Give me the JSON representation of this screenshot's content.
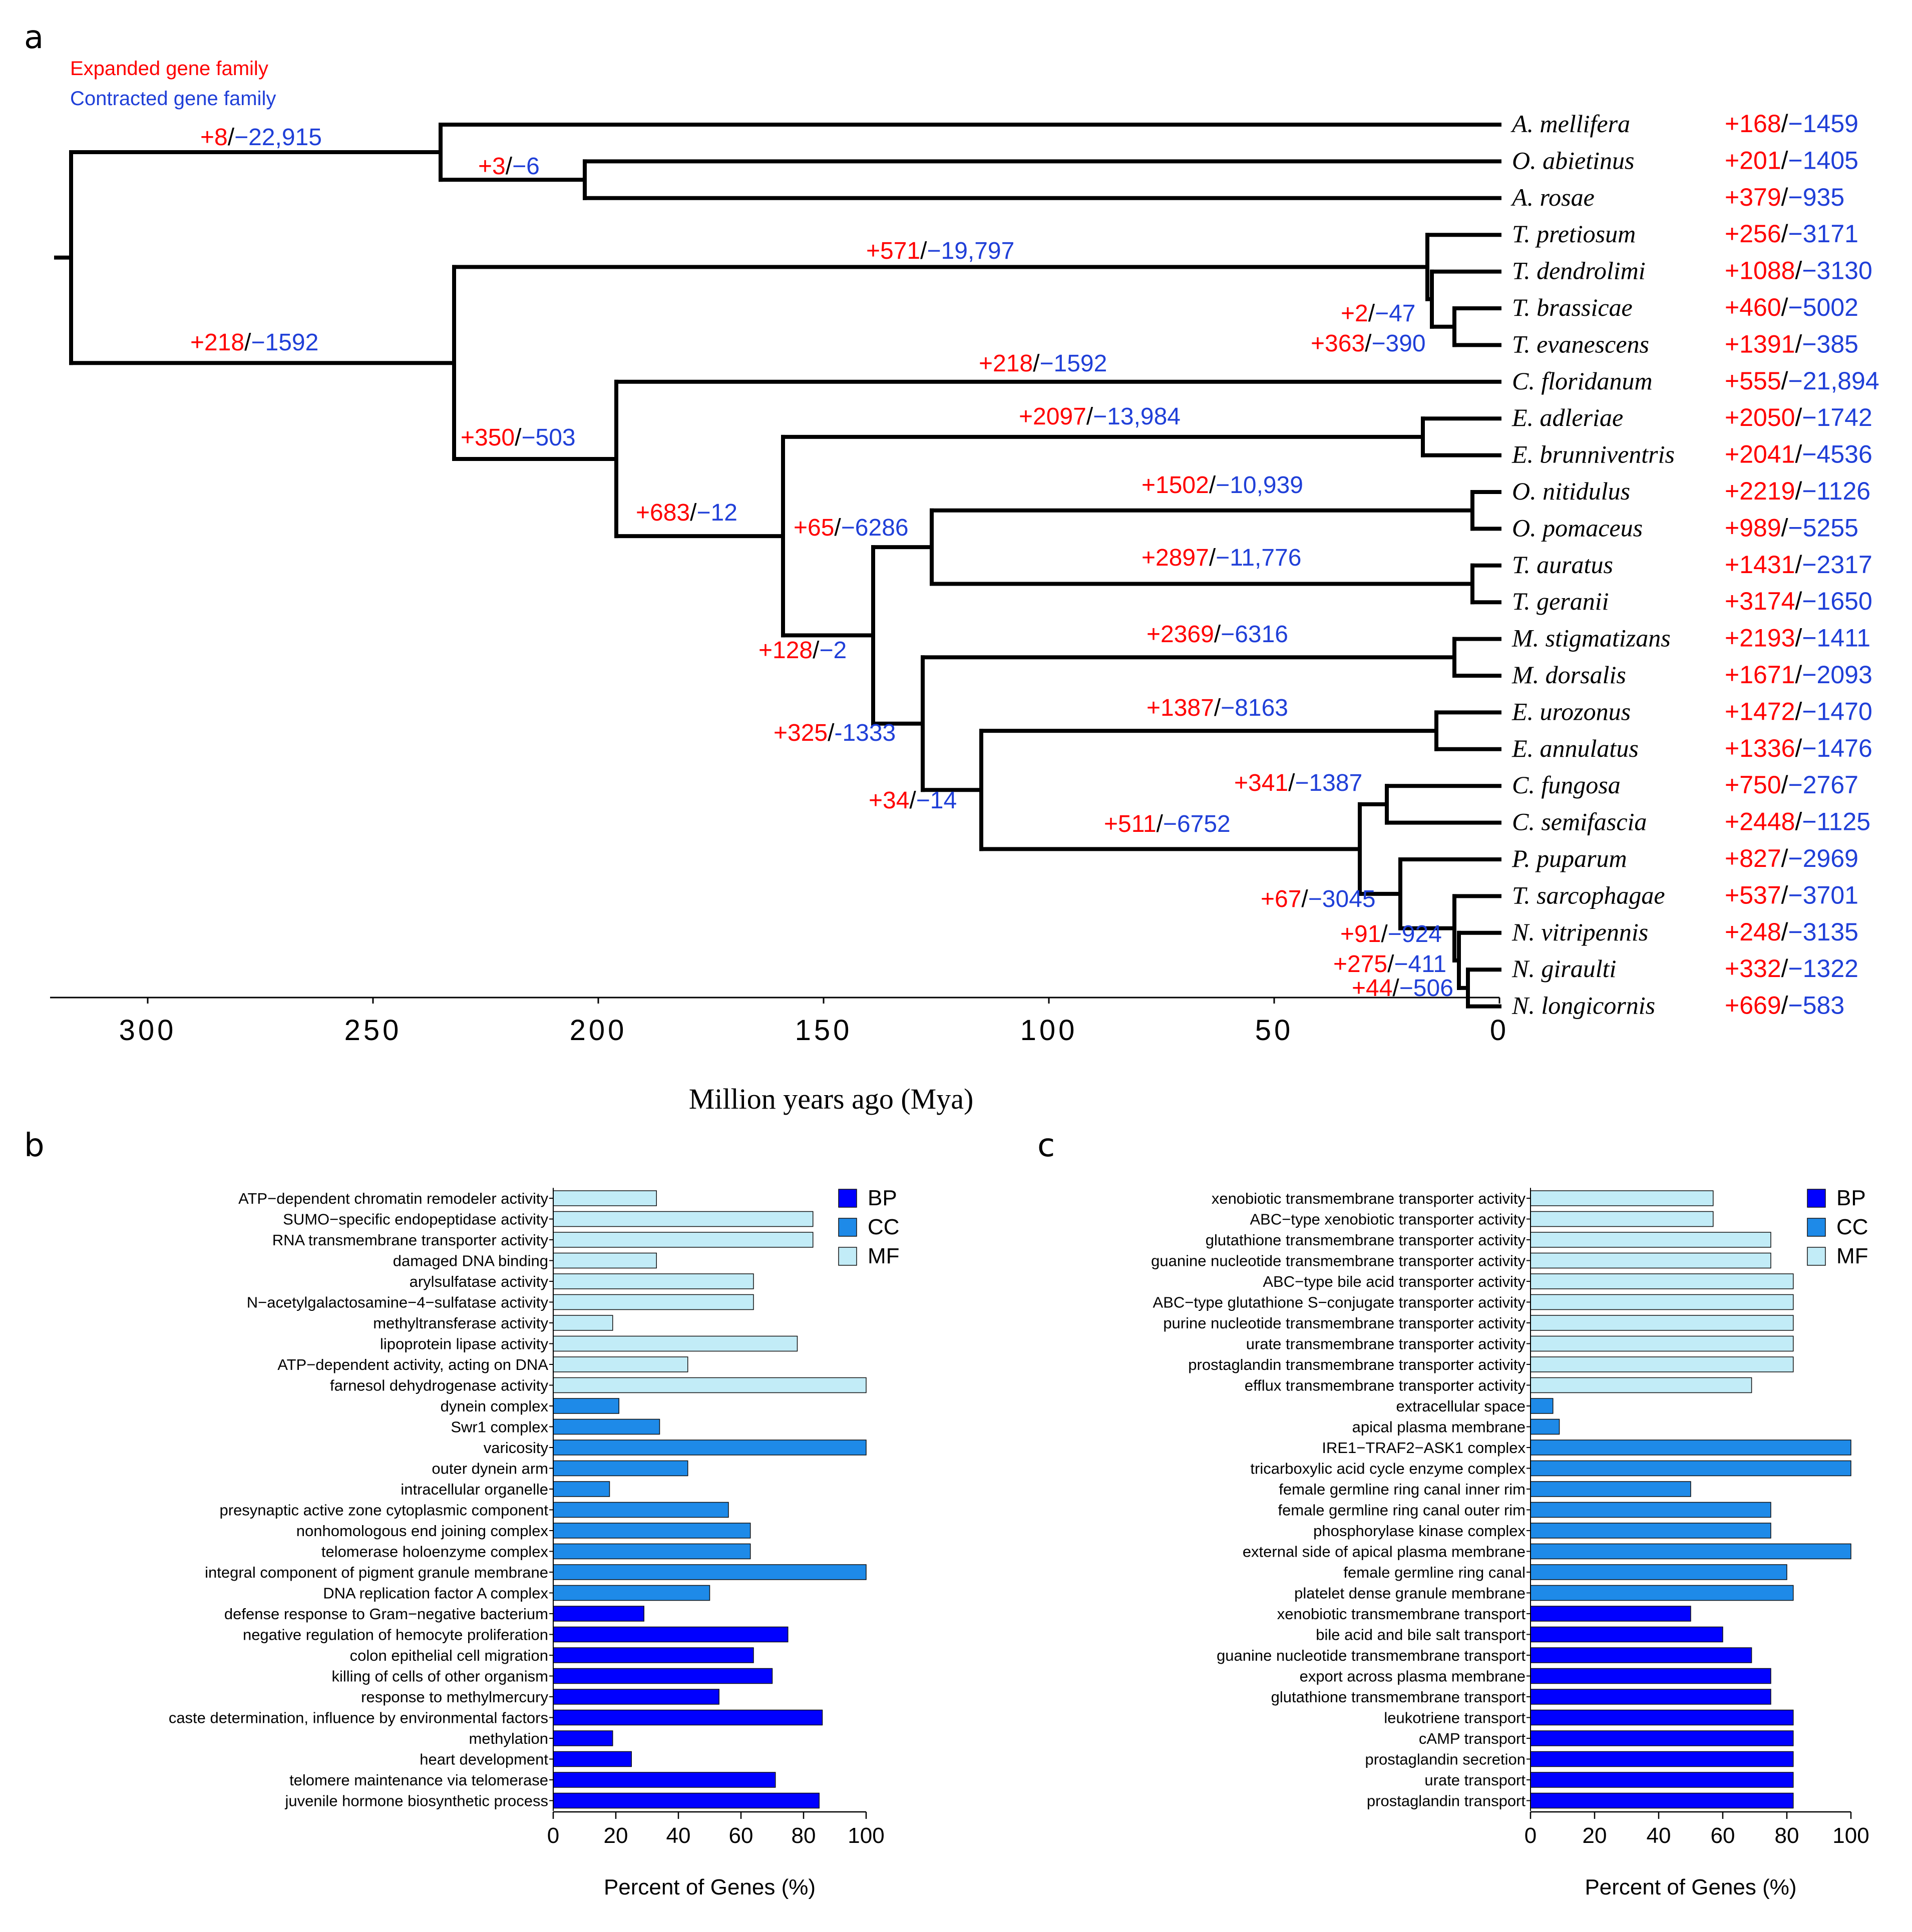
{
  "panels": {
    "a": "a",
    "b": "b",
    "c": "c"
  },
  "legend": {
    "expanded": "Expanded gene family",
    "contracted": "Contracted gene family"
  },
  "colors": {
    "expanded": "#ff0000",
    "contracted": "#1f3fd8",
    "BP": "#0000ff",
    "CC": "#1e8ae8",
    "MF": "#c2ecf7"
  },
  "chart_data": [
    {
      "type": "tree",
      "xlabel": "Million years ago (Mya)",
      "x_ticks": [
        300,
        250,
        200,
        150,
        100,
        50,
        0
      ],
      "xlim": [
        320,
        0
      ],
      "taxa": [
        {
          "name": "A. mellifera",
          "expanded": "+168",
          "contracted": "−1459"
        },
        {
          "name": "O. abietinus",
          "expanded": "+201",
          "contracted": "−1405"
        },
        {
          "name": "A. rosae",
          "expanded": "+379",
          "contracted": "−935"
        },
        {
          "name": "T. pretiosum",
          "expanded": "+256",
          "contracted": "−3171"
        },
        {
          "name": "T. dendrolimi",
          "expanded": "+1088",
          "contracted": "−3130"
        },
        {
          "name": "T. brassicae",
          "expanded": "+460",
          "contracted": "−5002"
        },
        {
          "name": "T. evanescens",
          "expanded": "+1391",
          "contracted": "−385"
        },
        {
          "name": "C. floridanum",
          "expanded": "+555",
          "contracted": "−21,894"
        },
        {
          "name": "E. adleriae",
          "expanded": "+2050",
          "contracted": "−1742"
        },
        {
          "name": "E. brunniventris",
          "expanded": "+2041",
          "contracted": "−4536"
        },
        {
          "name": "O. nitidulus",
          "expanded": "+2219",
          "contracted": "−1126"
        },
        {
          "name": "O. pomaceus",
          "expanded": "+989",
          "contracted": "−5255"
        },
        {
          "name": "T. auratus",
          "expanded": "+1431",
          "contracted": "−2317"
        },
        {
          "name": "T. geranii",
          "expanded": "+3174",
          "contracted": "−1650"
        },
        {
          "name": "M. stigmatizans",
          "expanded": "+2193",
          "contracted": "−1411"
        },
        {
          "name": "M. dorsalis",
          "expanded": "+1671",
          "contracted": "−2093"
        },
        {
          "name": "E. urozonus",
          "expanded": "+1472",
          "contracted": "−1470"
        },
        {
          "name": "E. annulatus",
          "expanded": "+1336",
          "contracted": "−1476"
        },
        {
          "name": "C. fungosa",
          "expanded": "+750",
          "contracted": "−2767"
        },
        {
          "name": "C. semifascia",
          "expanded": "+2448",
          "contracted": "−1125"
        },
        {
          "name": "P. puparum",
          "expanded": "+827",
          "contracted": "−2969"
        },
        {
          "name": "T. sarcophagae",
          "expanded": "+537",
          "contracted": "−3701"
        },
        {
          "name": "N. vitripennis",
          "expanded": "+248",
          "contracted": "−3135"
        },
        {
          "name": "N. giraulti",
          "expanded": "+332",
          "contracted": "−1322"
        },
        {
          "name": "N. longicornis",
          "expanded": "+669",
          "contracted": "−583"
        }
      ],
      "nodes": [
        {
          "id": "root",
          "age": 317
        },
        {
          "id": "ApisTen",
          "age": 235
        },
        {
          "id": "OrARo",
          "age": 203
        },
        {
          "id": "Chal",
          "age": 232
        },
        {
          "id": "Trich",
          "age": 16
        },
        {
          "id": "TdTbTe",
          "age": 15
        },
        {
          "id": "TbTe",
          "age": 10
        },
        {
          "id": "CfRest",
          "age": 196
        },
        {
          "id": "EuRest",
          "age": 159
        },
        {
          "id": "Eupelm",
          "age": 17
        },
        {
          "id": "OrmTor",
          "age": 139
        },
        {
          "id": "OrmTor2",
          "age": 126
        },
        {
          "id": "Ormyr",
          "age": 6
        },
        {
          "id": "Torym",
          "age": 6
        },
        {
          "id": "MegPter",
          "age": 128
        },
        {
          "id": "Megast",
          "age": 10
        },
        {
          "id": "EurPter",
          "age": 115
        },
        {
          "id": "Eurytom",
          "age": 14
        },
        {
          "id": "Pter",
          "age": 31
        },
        {
          "id": "Cfung",
          "age": 25
        },
        {
          "id": "PupNas",
          "age": 22
        },
        {
          "id": "TsNas",
          "age": 10
        },
        {
          "id": "Nas",
          "age": 9
        },
        {
          "id": "NgNl",
          "age": 7
        }
      ],
      "branch_annotations": [
        {
          "node": "ApisTen",
          "expanded": "+8",
          "contracted": "−22,915"
        },
        {
          "node": "OrARo",
          "expanded": "+3",
          "contracted": "−6"
        },
        {
          "node": "Trich",
          "expanded": "+571",
          "contracted": "−19,797"
        },
        {
          "node": "Chal",
          "expanded": "+218",
          "contracted": "−1592"
        },
        {
          "node": "TbTe a",
          "expanded": "+2",
          "contracted": "−47"
        },
        {
          "node": "TbTe b",
          "expanded": "+363",
          "contracted": "−390"
        },
        {
          "node": "C. floridanum",
          "expanded": "+218",
          "contracted": "−1592"
        },
        {
          "node": "Eupelm",
          "expanded": "+2097",
          "contracted": "−13,984"
        },
        {
          "node": "CfRest",
          "expanded": "+350",
          "contracted": "−503"
        },
        {
          "node": "Ormyr",
          "expanded": "+1502",
          "contracted": "−10,939"
        },
        {
          "node": "EuRest",
          "expanded": "+683",
          "contracted": "−12"
        },
        {
          "node": "OrmTor2",
          "expanded": "+65",
          "contracted": "−6286"
        },
        {
          "node": "Torym",
          "expanded": "+2897",
          "contracted": "−11,776"
        },
        {
          "node": "OrmTor",
          "expanded": "+128",
          "contracted": "−2"
        },
        {
          "node": "Megast",
          "expanded": "+2369",
          "contracted": "−6316"
        },
        {
          "node": "MegPter",
          "expanded": "+325",
          "contracted": "-1333"
        },
        {
          "node": "Eurytom",
          "expanded": "+1387",
          "contracted": "−8163"
        },
        {
          "node": "Cfung",
          "expanded": "+341",
          "contracted": "−1387"
        },
        {
          "node": "EurPter",
          "expanded": "+34",
          "contracted": "−14"
        },
        {
          "node": "Pter",
          "expanded": "+511",
          "contracted": "−6752"
        },
        {
          "node": "PupNas",
          "expanded": "+67",
          "contracted": "−3045"
        },
        {
          "node": "Nas",
          "expanded": "+91",
          "contracted": "−924"
        },
        {
          "node": "NgNl a",
          "expanded": "+275",
          "contracted": "−411"
        },
        {
          "node": "NgNl b",
          "expanded": "+44",
          "contracted": "−506"
        }
      ]
    },
    {
      "type": "bar",
      "orientation": "horizontal",
      "xlabel": "Percent of Genes (%)",
      "xlim": [
        0,
        100
      ],
      "x_ticks": [
        0,
        20,
        40,
        60,
        80,
        100
      ],
      "legend": [
        "BP",
        "CC",
        "MF"
      ],
      "legend_position": "top-right",
      "categories": [
        {
          "label": "ATP−dependent chromatin remodeler activity",
          "value": 33,
          "group": "MF"
        },
        {
          "label": "SUMO−specific endopeptidase activity",
          "value": 83,
          "group": "MF"
        },
        {
          "label": "RNA transmembrane transporter activity",
          "value": 83,
          "group": "MF"
        },
        {
          "label": "damaged DNA binding",
          "value": 33,
          "group": "MF"
        },
        {
          "label": "arylsulfatase activity",
          "value": 64,
          "group": "MF"
        },
        {
          "label": "N−acetylgalactosamine−4−sulfatase activity",
          "value": 64,
          "group": "MF"
        },
        {
          "label": "methyltransferase activity",
          "value": 19,
          "group": "MF"
        },
        {
          "label": "lipoprotein lipase activity",
          "value": 78,
          "group": "MF"
        },
        {
          "label": "ATP−dependent activity, acting on DNA",
          "value": 43,
          "group": "MF"
        },
        {
          "label": "farnesol dehydrogenase activity",
          "value": 100,
          "group": "MF"
        },
        {
          "label": "dynein complex",
          "value": 21,
          "group": "CC"
        },
        {
          "label": "Swr1 complex",
          "value": 34,
          "group": "CC"
        },
        {
          "label": "varicosity",
          "value": 100,
          "group": "CC"
        },
        {
          "label": "outer dynein arm",
          "value": 43,
          "group": "CC"
        },
        {
          "label": "intracellular organelle",
          "value": 18,
          "group": "CC"
        },
        {
          "label": "presynaptic active zone cytoplasmic component",
          "value": 56,
          "group": "CC"
        },
        {
          "label": "nonhomologous end joining complex",
          "value": 63,
          "group": "CC"
        },
        {
          "label": "telomerase holoenzyme complex",
          "value": 63,
          "group": "CC"
        },
        {
          "label": "integral component of pigment granule membrane",
          "value": 100,
          "group": "CC"
        },
        {
          "label": "DNA replication factor A complex",
          "value": 50,
          "group": "CC"
        },
        {
          "label": "defense response to Gram−negative bacterium",
          "value": 29,
          "group": "BP"
        },
        {
          "label": "negative regulation of hemocyte proliferation",
          "value": 75,
          "group": "BP"
        },
        {
          "label": "colon epithelial cell migration",
          "value": 64,
          "group": "BP"
        },
        {
          "label": "killing of cells of other organism",
          "value": 70,
          "group": "BP"
        },
        {
          "label": "response to methylmercury",
          "value": 53,
          "group": "BP"
        },
        {
          "label": "caste determination, influence by environmental factors",
          "value": 86,
          "group": "BP"
        },
        {
          "label": "methylation",
          "value": 19,
          "group": "BP"
        },
        {
          "label": "heart development",
          "value": 25,
          "group": "BP"
        },
        {
          "label": "telomere maintenance via telomerase",
          "value": 71,
          "group": "BP"
        },
        {
          "label": "juvenile hormone biosynthetic process",
          "value": 85,
          "group": "BP"
        }
      ]
    },
    {
      "type": "bar",
      "orientation": "horizontal",
      "xlabel": "Percent of Genes (%)",
      "xlim": [
        0,
        100
      ],
      "x_ticks": [
        0,
        20,
        40,
        60,
        80,
        100
      ],
      "legend": [
        "BP",
        "CC",
        "MF"
      ],
      "legend_position": "top-right",
      "categories": [
        {
          "label": "xenobiotic transmembrane transporter activity",
          "value": 57,
          "group": "MF"
        },
        {
          "label": "ABC−type xenobiotic transporter activity",
          "value": 57,
          "group": "MF"
        },
        {
          "label": "glutathione transmembrane transporter activity",
          "value": 75,
          "group": "MF"
        },
        {
          "label": "guanine nucleotide transmembrane transporter activity",
          "value": 75,
          "group": "MF"
        },
        {
          "label": "ABC−type bile acid transporter activity",
          "value": 82,
          "group": "MF"
        },
        {
          "label": "ABC−type glutathione S−conjugate transporter activity",
          "value": 82,
          "group": "MF"
        },
        {
          "label": "purine nucleotide transmembrane transporter activity",
          "value": 82,
          "group": "MF"
        },
        {
          "label": "urate transmembrane transporter activity",
          "value": 82,
          "group": "MF"
        },
        {
          "label": "prostaglandin transmembrane transporter activity",
          "value": 82,
          "group": "MF"
        },
        {
          "label": "efflux transmembrane transporter activity",
          "value": 69,
          "group": "MF"
        },
        {
          "label": "extracellular space",
          "value": 7,
          "group": "CC"
        },
        {
          "label": "apical plasma membrane",
          "value": 9,
          "group": "CC"
        },
        {
          "label": "IRE1−TRAF2−ASK1 complex",
          "value": 100,
          "group": "CC"
        },
        {
          "label": "tricarboxylic acid cycle enzyme complex",
          "value": 100,
          "group": "CC"
        },
        {
          "label": "female germline ring canal inner rim",
          "value": 50,
          "group": "CC"
        },
        {
          "label": "female germline ring canal outer rim",
          "value": 75,
          "group": "CC"
        },
        {
          "label": "phosphorylase kinase complex",
          "value": 75,
          "group": "CC"
        },
        {
          "label": "external side of apical plasma membrane",
          "value": 100,
          "group": "CC"
        },
        {
          "label": "female germline ring canal",
          "value": 80,
          "group": "CC"
        },
        {
          "label": "platelet dense granule membrane",
          "value": 82,
          "group": "CC"
        },
        {
          "label": "xenobiotic transmembrane transport",
          "value": 50,
          "group": "BP"
        },
        {
          "label": "bile acid and bile salt transport",
          "value": 60,
          "group": "BP"
        },
        {
          "label": "guanine nucleotide transmembrane transport",
          "value": 69,
          "group": "BP"
        },
        {
          "label": "export across plasma membrane",
          "value": 75,
          "group": "BP"
        },
        {
          "label": "glutathione transmembrane transport",
          "value": 75,
          "group": "BP"
        },
        {
          "label": "leukotriene transport",
          "value": 82,
          "group": "BP"
        },
        {
          "label": "cAMP transport",
          "value": 82,
          "group": "BP"
        },
        {
          "label": "prostaglandin secretion",
          "value": 82,
          "group": "BP"
        },
        {
          "label": "urate transport",
          "value": 82,
          "group": "BP"
        },
        {
          "label": "prostaglandin transport",
          "value": 82,
          "group": "BP"
        }
      ]
    }
  ]
}
